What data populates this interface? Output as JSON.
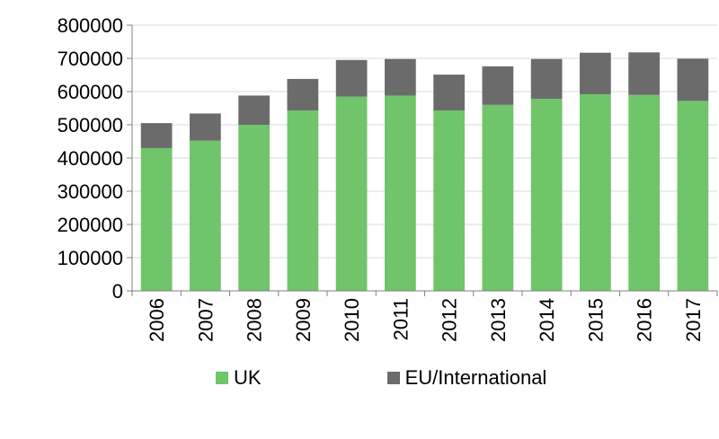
{
  "chart_data": {
    "type": "bar",
    "stacked": true,
    "categories": [
      "2006",
      "2007",
      "2008",
      "2009",
      "2010",
      "2011",
      "2012",
      "2013",
      "2014",
      "2015",
      "2016",
      "2017"
    ],
    "series": [
      {
        "name": "UK",
        "color": "#70c46a",
        "values": [
          430000,
          452000,
          500000,
          543000,
          585000,
          588000,
          543000,
          560000,
          578000,
          592000,
          590000,
          572000
        ]
      },
      {
        "name": "EU/International",
        "color": "#6b6b6b",
        "values": [
          75000,
          82000,
          88000,
          95000,
          110000,
          110000,
          108000,
          116000,
          120000,
          125000,
          128000,
          127000
        ]
      }
    ],
    "yticks": [
      "0",
      "100000",
      "200000",
      "300000",
      "400000",
      "500000",
      "600000",
      "700000",
      "800000"
    ],
    "ylim": [
      0,
      800000
    ],
    "grid": true,
    "legend_position": "bottom"
  }
}
